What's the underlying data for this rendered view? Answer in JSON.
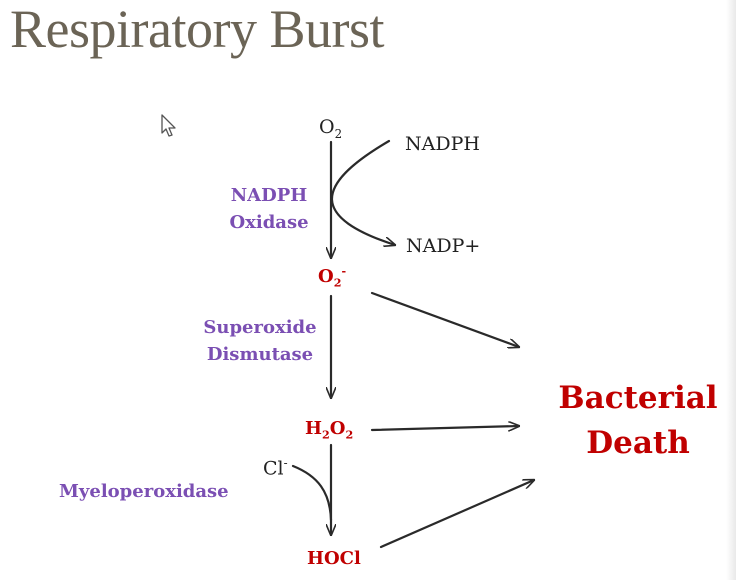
{
  "title": "Respiratory Burst",
  "species": {
    "o2": {
      "base": "O",
      "sub": "2"
    },
    "nadph": "NADPH",
    "nadp_plus": "NADP+",
    "superoxide": {
      "base": "O",
      "sub": "2",
      "sup": "-"
    },
    "h2o2": {
      "a": "H",
      "sub1": "2",
      "b": "O",
      "sub2": "2"
    },
    "chloride": {
      "base": "Cl",
      "sup": "-"
    },
    "hocl": "HOCl"
  },
  "enzymes": {
    "nadph_oxidase": [
      "NADPH",
      "Oxidase"
    ],
    "superoxide_dismutase": [
      "Superoxide",
      "Dismutase"
    ],
    "myeloperoxidase": "Myeloperoxidase"
  },
  "outcome": [
    "Bacterial",
    "Death"
  ],
  "colors": {
    "title": "#6b6456",
    "enzyme": "#7b4fb3",
    "species": "#c00000",
    "arrow": "#2a2a2a"
  },
  "icons": [
    "mouse-cursor-icon"
  ]
}
